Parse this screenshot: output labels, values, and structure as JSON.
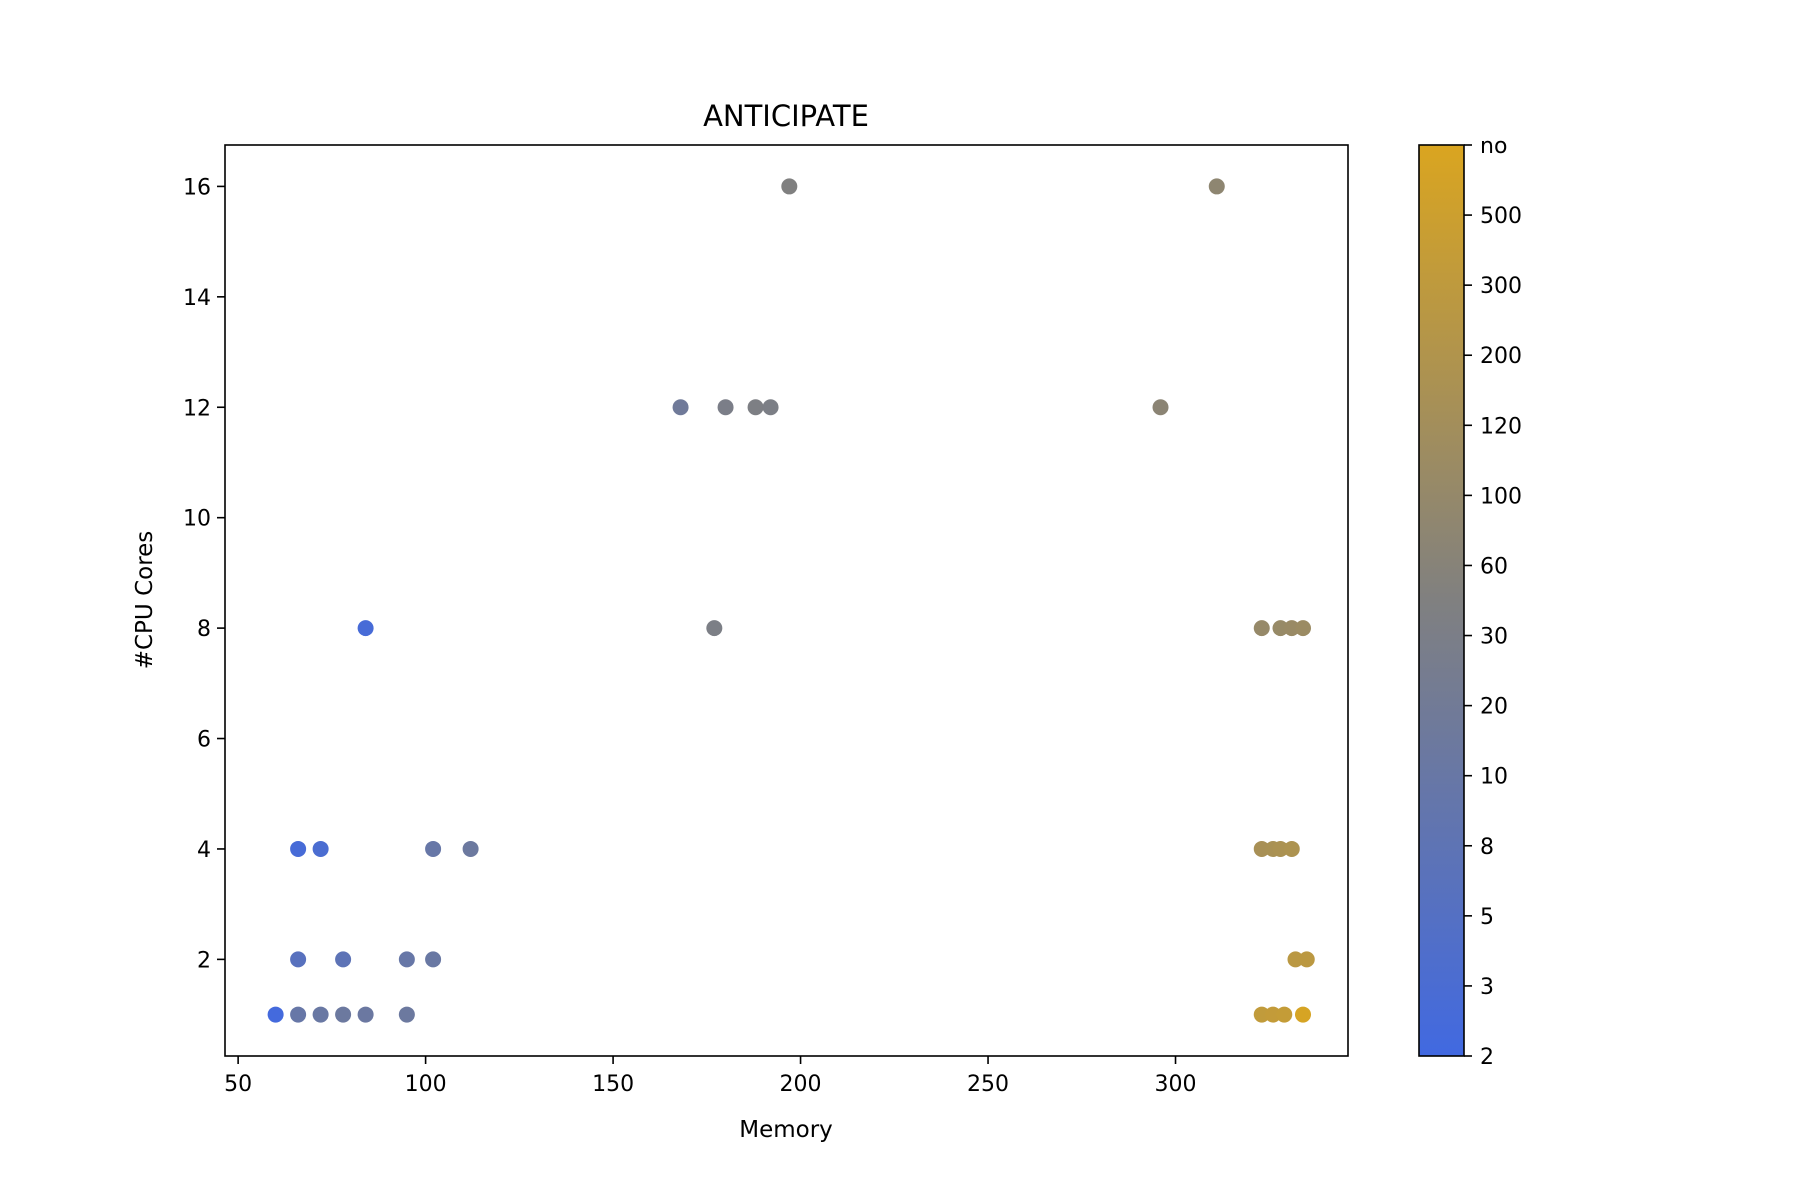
{
  "chart_data": {
    "type": "scatter",
    "title": "ANTICIPATE",
    "xlabel": "Memory",
    "ylabel": "#CPU Cores",
    "xlim": [
      46.5,
      346
    ],
    "ylim": [
      0.25,
      16.75
    ],
    "xticks": [
      50,
      100,
      150,
      200,
      250,
      300
    ],
    "yticks": [
      2,
      4,
      6,
      8,
      10,
      12,
      14,
      16
    ],
    "grid": false,
    "legend": "none",
    "colorbar": {
      "ticks": [
        "2",
        "3",
        "5",
        "8",
        "10",
        "20",
        "30",
        "60",
        "100",
        "120",
        "200",
        "300",
        "500",
        "no"
      ],
      "color_low": "#4169e1",
      "color_mid": "#808080",
      "color_high": "#daa520"
    },
    "points": [
      {
        "x": 60,
        "y": 1,
        "c": 0.02
      },
      {
        "x": 66,
        "y": 1,
        "c": 0.3
      },
      {
        "x": 72,
        "y": 1,
        "c": 0.32
      },
      {
        "x": 78,
        "y": 1,
        "c": 0.34
      },
      {
        "x": 84,
        "y": 1,
        "c": 0.33
      },
      {
        "x": 95,
        "y": 1,
        "c": 0.34
      },
      {
        "x": 66,
        "y": 2,
        "c": 0.18
      },
      {
        "x": 78,
        "y": 2,
        "c": 0.22
      },
      {
        "x": 95,
        "y": 2,
        "c": 0.3
      },
      {
        "x": 102,
        "y": 2,
        "c": 0.32
      },
      {
        "x": 66,
        "y": 4,
        "c": 0.05
      },
      {
        "x": 72,
        "y": 4,
        "c": 0.08
      },
      {
        "x": 102,
        "y": 4,
        "c": 0.3
      },
      {
        "x": 112,
        "y": 4,
        "c": 0.34
      },
      {
        "x": 84,
        "y": 8,
        "c": 0.05
      },
      {
        "x": 168,
        "y": 12,
        "c": 0.37
      },
      {
        "x": 180,
        "y": 12,
        "c": 0.46
      },
      {
        "x": 188,
        "y": 12,
        "c": 0.48
      },
      {
        "x": 192,
        "y": 12,
        "c": 0.47
      },
      {
        "x": 177,
        "y": 8,
        "c": 0.47
      },
      {
        "x": 197,
        "y": 16,
        "c": 0.5
      },
      {
        "x": 296,
        "y": 12,
        "c": 0.56
      },
      {
        "x": 311,
        "y": 16,
        "c": 0.58
      },
      {
        "x": 323,
        "y": 8,
        "c": 0.62
      },
      {
        "x": 328,
        "y": 8,
        "c": 0.63
      },
      {
        "x": 331,
        "y": 8,
        "c": 0.64
      },
      {
        "x": 334,
        "y": 8,
        "c": 0.65
      },
      {
        "x": 323,
        "y": 4,
        "c": 0.72
      },
      {
        "x": 326,
        "y": 4,
        "c": 0.73
      },
      {
        "x": 328,
        "y": 4,
        "c": 0.74
      },
      {
        "x": 331,
        "y": 4,
        "c": 0.75
      },
      {
        "x": 332,
        "y": 2,
        "c": 0.82
      },
      {
        "x": 335,
        "y": 2,
        "c": 0.83
      },
      {
        "x": 323,
        "y": 1,
        "c": 0.86
      },
      {
        "x": 326,
        "y": 1,
        "c": 0.87
      },
      {
        "x": 329,
        "y": 1,
        "c": 0.88
      },
      {
        "x": 334,
        "y": 1,
        "c": 0.98
      }
    ]
  }
}
